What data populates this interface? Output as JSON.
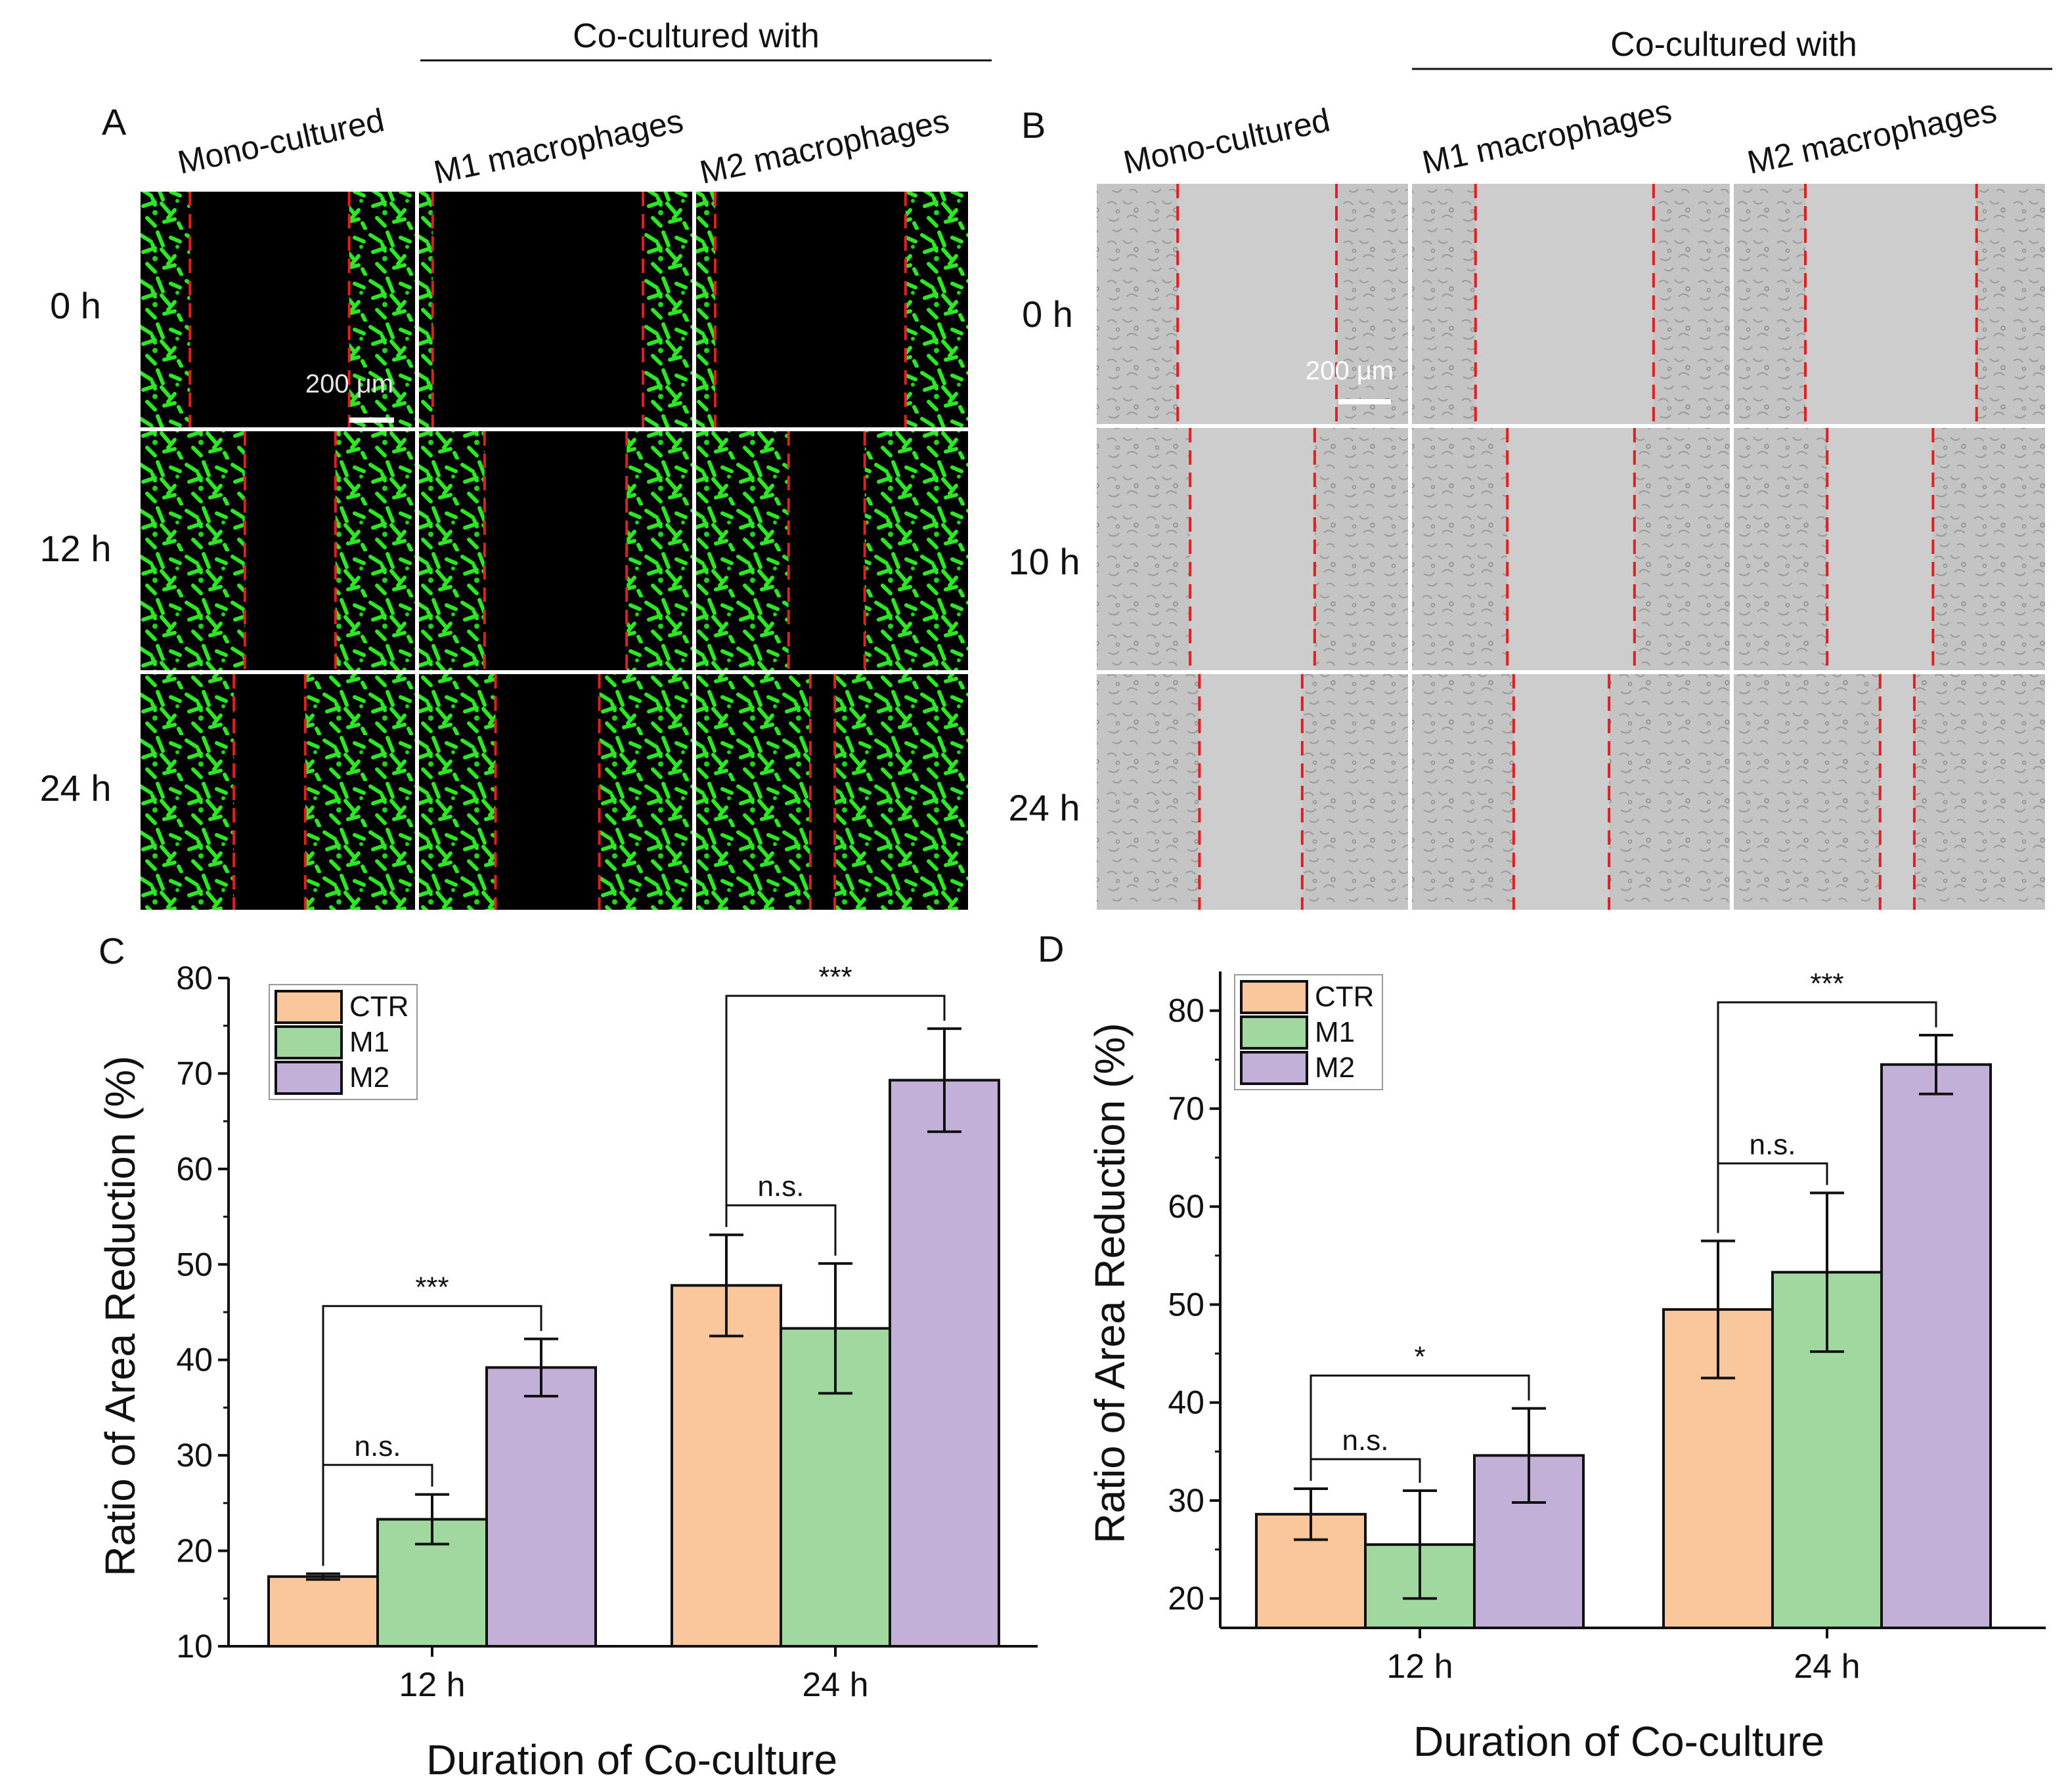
{
  "panelA": {
    "letter": "A",
    "group_header": "Co-cultured with",
    "columns": [
      "Mono-cultured",
      "M1 macrophages",
      "M2 macrophages"
    ],
    "rows": [
      "0 h",
      "12 h",
      "24 h"
    ],
    "scale_bar": "200 μm"
  },
  "panelB": {
    "letter": "B",
    "group_header": "Co-cultured with",
    "columns": [
      "Mono-cultured",
      "M1 macrophages",
      "M2 macrophages"
    ],
    "rows": [
      "0 h",
      "10 h",
      "24 h"
    ],
    "scale_bar": "200 μm"
  },
  "colors": {
    "CTR": "#f9c79b",
    "M1": "#a1d8a0",
    "M2": "#c3b0d8",
    "green": "#22e01c",
    "redline": "#e02020"
  },
  "chart_data": [
    {
      "panel": "C",
      "type": "bar",
      "categories": [
        "12 h",
        "24 h"
      ],
      "series": [
        {
          "name": "CTR",
          "values": [
            17.3,
            47.8
          ],
          "errors": [
            0.3,
            5.3
          ]
        },
        {
          "name": "M1",
          "values": [
            23.3,
            43.3
          ],
          "errors": [
            2.6,
            6.8
          ]
        },
        {
          "name": "M2",
          "values": [
            39.2,
            69.3
          ],
          "errors": [
            3.0,
            5.4
          ]
        }
      ],
      "xlabel": "Duration of Co-culture",
      "ylabel": "Ratio of Area Reduction (%)",
      "ylim": [
        10,
        80
      ],
      "yticks": [
        "10",
        "20",
        "30",
        "40",
        "50",
        "60",
        "70",
        "80"
      ],
      "legend": [
        "CTR",
        "M1",
        "M2"
      ],
      "annotations": [
        {
          "category": "12 h",
          "from": "CTR",
          "to": "M1",
          "label": "n.s."
        },
        {
          "category": "12 h",
          "from": "CTR",
          "to": "M2",
          "label": "***"
        },
        {
          "category": "24 h",
          "from": "CTR",
          "to": "M1",
          "label": "n.s."
        },
        {
          "category": "24 h",
          "from": "CTR",
          "to": "M2",
          "label": "***"
        }
      ]
    },
    {
      "panel": "D",
      "type": "bar",
      "categories": [
        "12 h",
        "24 h"
      ],
      "series": [
        {
          "name": "CTR",
          "values": [
            28.6,
            49.5
          ],
          "errors": [
            2.6,
            7.0
          ]
        },
        {
          "name": "M1",
          "values": [
            25.5,
            53.3
          ],
          "errors": [
            5.5,
            8.1
          ]
        },
        {
          "name": "M2",
          "values": [
            34.6,
            74.5
          ],
          "errors": [
            4.8,
            3.0
          ]
        }
      ],
      "xlabel": "Duration of Co-culture",
      "ylabel": "Ratio of Area Reduction (%)",
      "ylim": [
        17,
        84
      ],
      "yticks": [
        "20",
        "30",
        "40",
        "50",
        "60",
        "70",
        "80"
      ],
      "legend": [
        "CTR",
        "M1",
        "M2"
      ],
      "annotations": [
        {
          "category": "12 h",
          "from": "CTR",
          "to": "M1",
          "label": "n.s."
        },
        {
          "category": "12 h",
          "from": "CTR",
          "to": "M2",
          "label": "*"
        },
        {
          "category": "24 h",
          "from": "CTR",
          "to": "M1",
          "label": "n.s."
        },
        {
          "category": "24 h",
          "from": "CTR",
          "to": "M2",
          "label": "***"
        }
      ]
    }
  ]
}
